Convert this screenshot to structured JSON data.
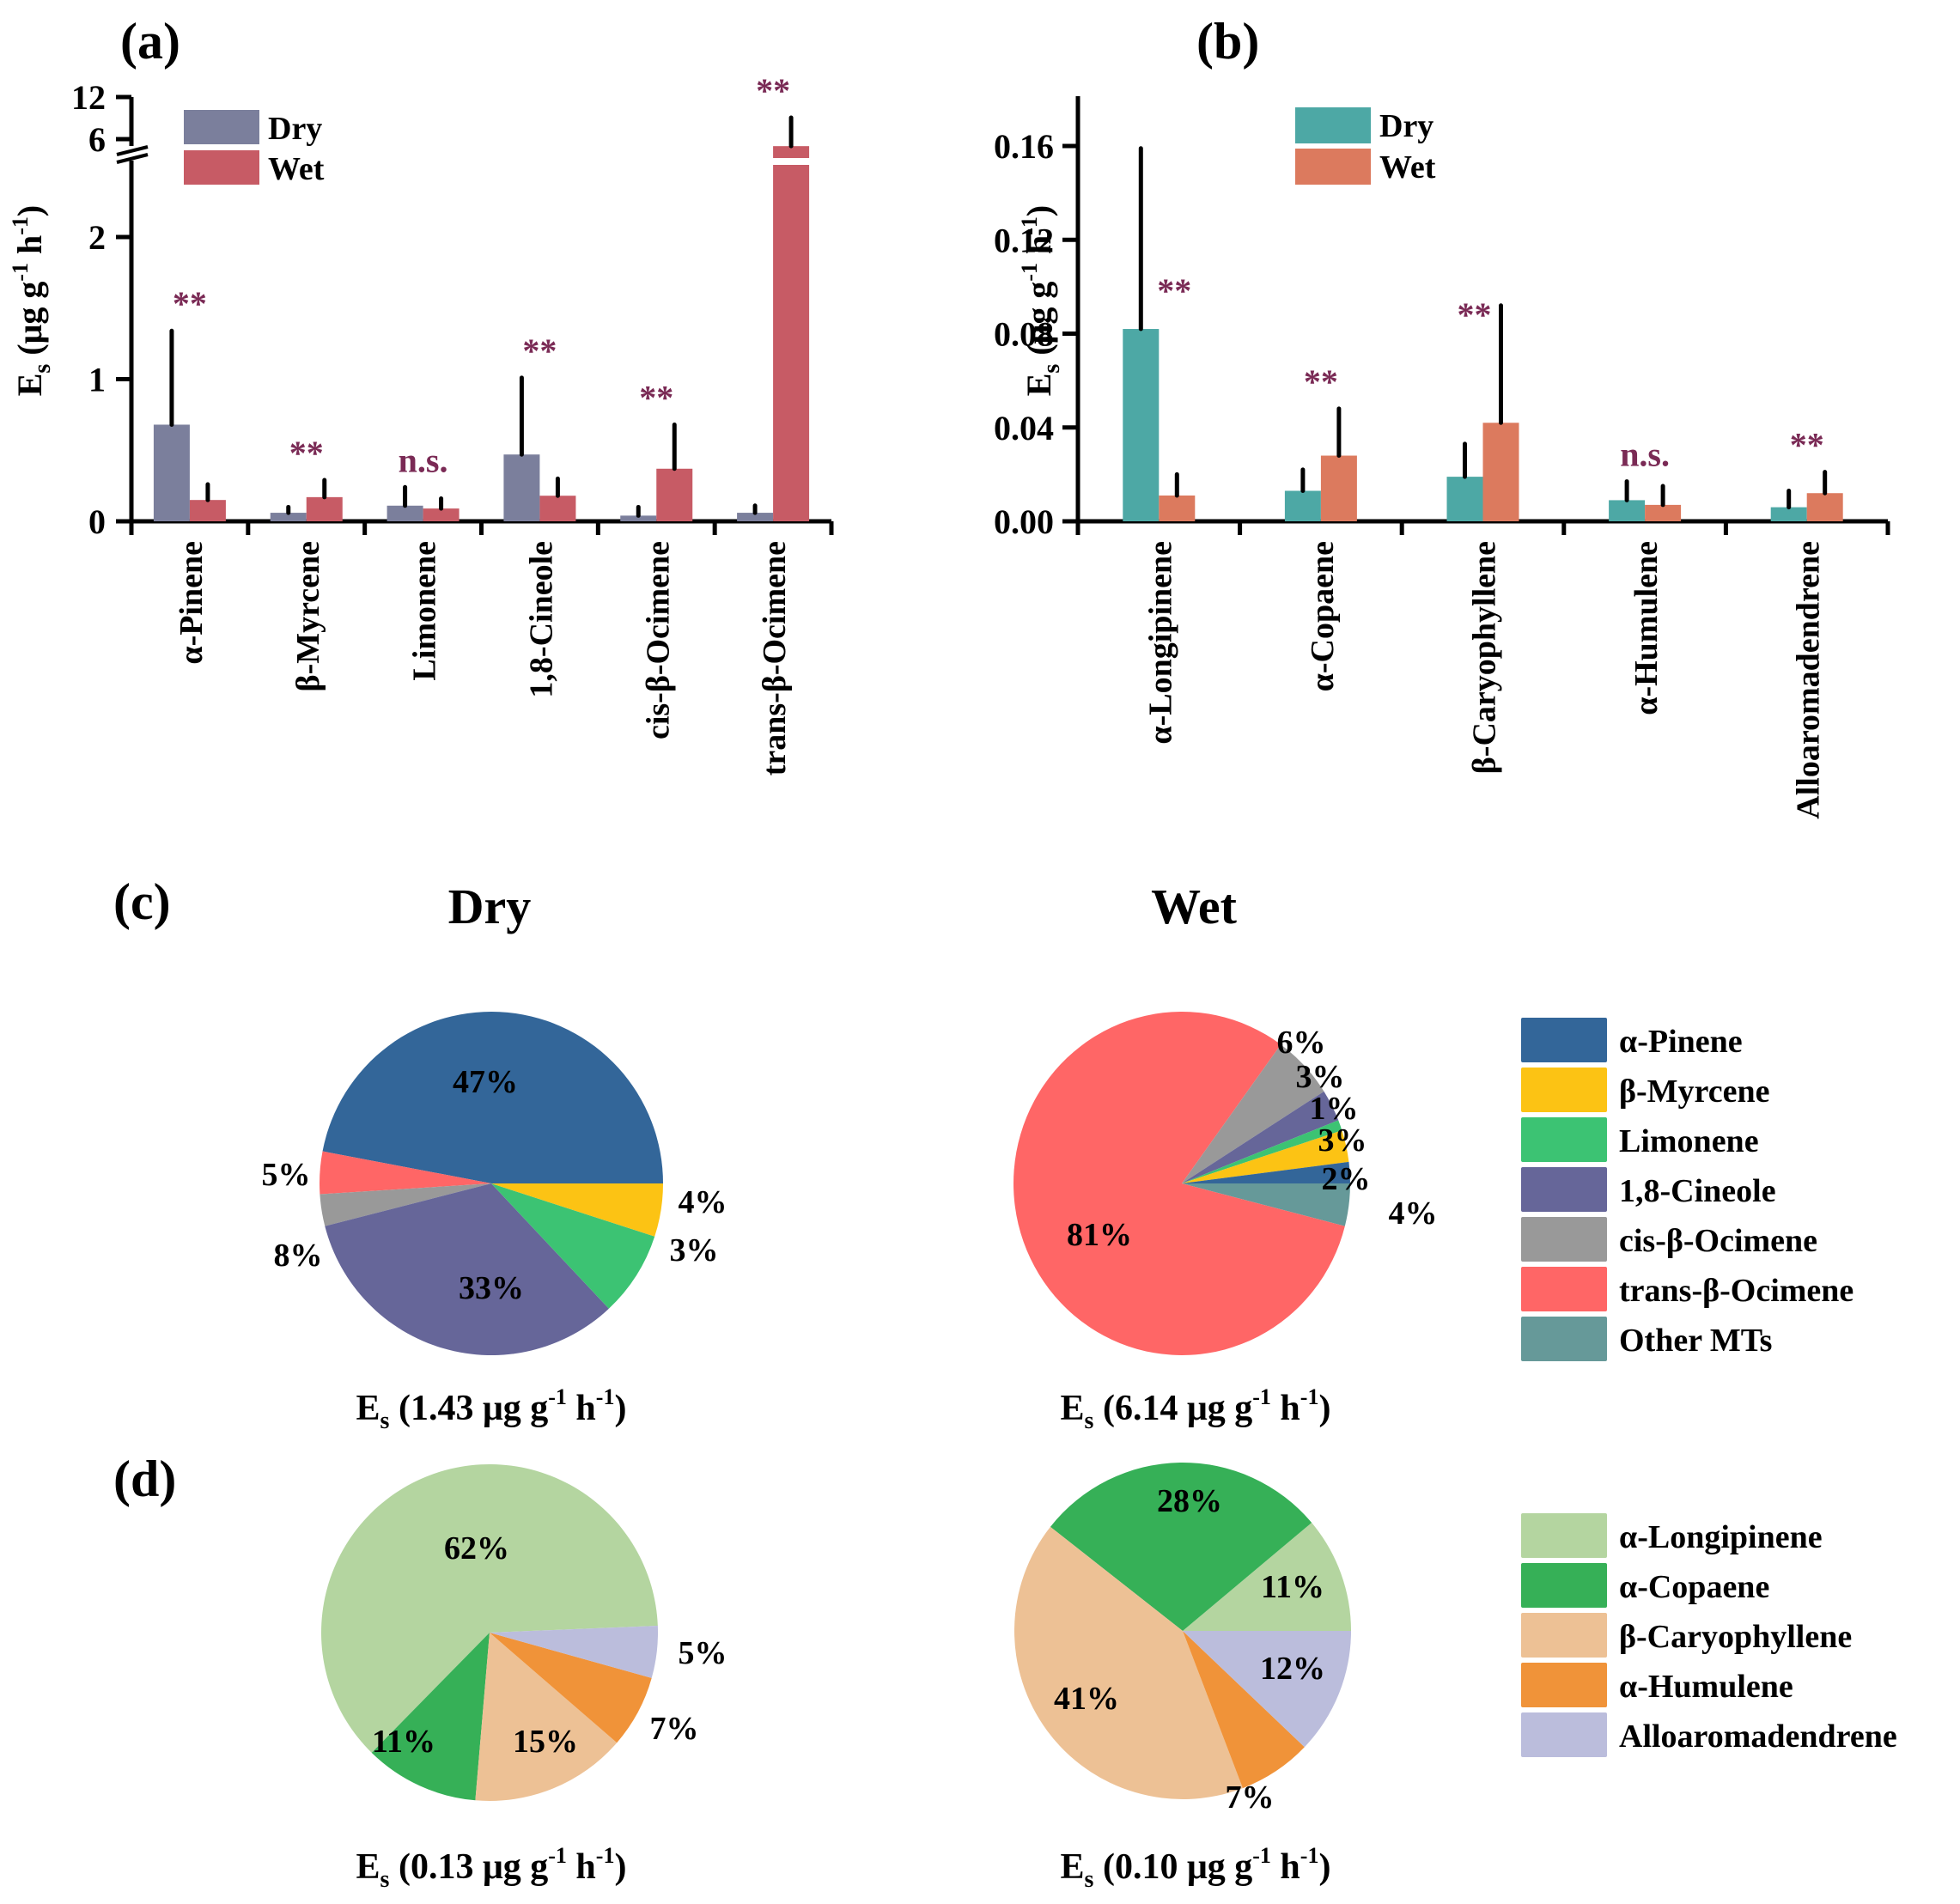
{
  "chart_data": [
    {
      "id": "a",
      "type": "bar",
      "panel_label": "(a)",
      "ylabel": "Es (μg g-1 h-1)",
      "ylabel_main": "E",
      "ylabel_sub": "s",
      "ylabel_rest": "(μg g",
      "ylabel_sup1": "-1",
      "ylabel_h": " h",
      "ylabel_sup2": "-1",
      "ylabel_close": ")",
      "y_ticks": [
        "0",
        "1",
        "2",
        "6",
        "12"
      ],
      "ylim": [
        0,
        12
      ],
      "axis_break": [
        2.5,
        5.5
      ],
      "categories": [
        "α-Pinene",
        "β-Myrcene",
        "Limonene",
        "1,8-Cineole",
        "cis-β-Ocimene",
        "trans-β-Ocimene"
      ],
      "series": [
        {
          "name": "Dry",
          "color": "#7b7f9c",
          "values": [
            0.68,
            0.06,
            0.11,
            0.47,
            0.04,
            0.06
          ],
          "errors": [
            0.66,
            0.04,
            0.13,
            0.54,
            0.06,
            0.05
          ]
        },
        {
          "name": "Wet",
          "color": "#c75b65",
          "values": [
            0.15,
            0.17,
            0.09,
            0.18,
            0.37,
            5.0
          ],
          "errors": [
            0.11,
            0.12,
            0.07,
            0.12,
            0.31,
            3.6
          ]
        }
      ],
      "significance": [
        "**",
        "**",
        "n.s.",
        "**",
        "**",
        "**"
      ],
      "legend": [
        "Dry",
        "Wet"
      ]
    },
    {
      "id": "b",
      "type": "bar",
      "panel_label": "(b)",
      "ylabel": "Es (μg g-1 h-1)",
      "y_ticks": [
        "0.00",
        "0.04",
        "0.08",
        "0.12",
        "0.16"
      ],
      "ylim": [
        0,
        0.18
      ],
      "categories": [
        "α-Longipinene",
        "α-Copaene",
        "β-Caryophyllene",
        "α-Humulene",
        "Alloaromadendrene"
      ],
      "series": [
        {
          "name": "Dry",
          "color": "#4da8a5",
          "values": [
            0.082,
            0.013,
            0.019,
            0.009,
            0.006
          ],
          "errors": [
            0.077,
            0.009,
            0.014,
            0.008,
            0.007
          ]
        },
        {
          "name": "Wet",
          "color": "#dc7a5e",
          "values": [
            0.011,
            0.028,
            0.042,
            0.007,
            0.012
          ],
          "errors": [
            0.009,
            0.02,
            0.05,
            0.008,
            0.009
          ]
        }
      ],
      "significance": [
        "**",
        "**",
        "**",
        "n.s.",
        "**"
      ],
      "legend": [
        "Dry",
        "Wet"
      ]
    },
    {
      "id": "c-dry",
      "type": "pie",
      "panel_label": "(c)",
      "title": "Dry",
      "caption_value": "1.43",
      "labels": [
        "α-Pinene",
        "trans-β-Ocimene",
        "cis-β-Ocimene",
        "1,8-Cineole",
        "Limonene",
        "β-Myrcene"
      ],
      "values": [
        47,
        4,
        3,
        33,
        8,
        5
      ],
      "colors": [
        "#336699",
        "#ff6666",
        "#999999",
        "#666699",
        "#3cc373",
        "#fcc314"
      ]
    },
    {
      "id": "c-wet",
      "type": "pie",
      "title": "Wet",
      "caption_value": "6.14",
      "labels": [
        "Other MTs",
        "trans-β-Ocimene",
        "cis-β-Ocimene",
        "1,8-Cineole",
        "Limonene",
        "β-Myrcene",
        "α-Pinene"
      ],
      "values": [
        4,
        81,
        6,
        3,
        1,
        3,
        2
      ],
      "colors": [
        "#669999",
        "#ff6666",
        "#999999",
        "#666699",
        "#3cc373",
        "#fcc314",
        "#336699"
      ]
    },
    {
      "id": "d-dry",
      "type": "pie",
      "panel_label": "(d)",
      "caption_value": "0.13",
      "labels": [
        "α-Longipinene",
        "α-Copaene",
        "β-Caryophyllene",
        "α-Humulene",
        "Alloaromadendrene"
      ],
      "values": [
        62,
        11,
        15,
        7,
        5
      ],
      "colors": [
        "#b4d5a0",
        "#36b057",
        "#edc195",
        "#f09339",
        "#bbbddc"
      ]
    },
    {
      "id": "d-wet",
      "type": "pie",
      "caption_value": "0.10",
      "labels": [
        "α-Longipinene",
        "α-Copaene",
        "β-Caryophyllene",
        "α-Humulene",
        "Alloaromadendrene"
      ],
      "values": [
        11,
        28,
        41,
        7,
        12
      ],
      "colors": [
        "#b4d5a0",
        "#36b057",
        "#edc195",
        "#f09339",
        "#bbbddc"
      ]
    }
  ],
  "legend_mt": [
    {
      "label": "α-Pinene",
      "color": "#336699"
    },
    {
      "label": "β-Myrcene",
      "color": "#fcc314"
    },
    {
      "label": "Limonene",
      "color": "#3cc373"
    },
    {
      "label": "1,8-Cineole",
      "color": "#666699"
    },
    {
      "label": "cis-β-Ocimene",
      "color": "#999999"
    },
    {
      "label": "trans-β-Ocimene",
      "color": "#ff6666"
    },
    {
      "label": "Other MTs",
      "color": "#669999"
    }
  ],
  "legend_st": [
    {
      "label": "α-Longipinene",
      "color": "#b4d5a0"
    },
    {
      "label": "α-Copaene",
      "color": "#36b057"
    },
    {
      "label": "β-Caryophyllene",
      "color": "#edc195"
    },
    {
      "label": "α-Humulene",
      "color": "#f09339"
    },
    {
      "label": "Alloaromadendrene",
      "color": "#bbbddc"
    }
  ],
  "caption_parts": {
    "E": "E",
    "s": "s",
    "unit": "μg g",
    "sup": "-1",
    "h": " h"
  },
  "colors": {
    "significance": "#7a2a55",
    "axis": "#000000"
  }
}
